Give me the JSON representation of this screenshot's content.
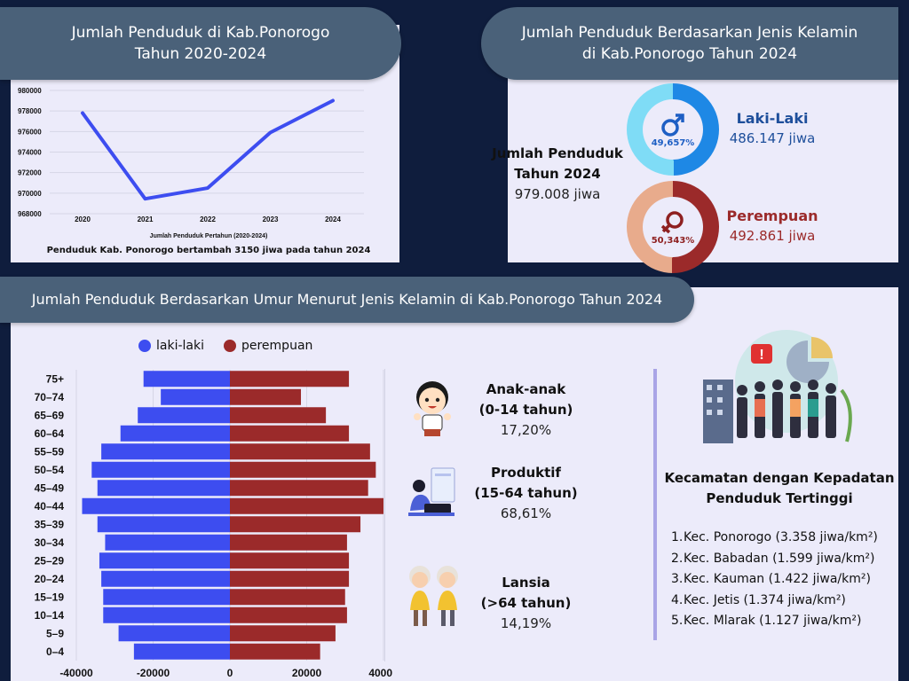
{
  "header_left": {
    "line1": "Jumlah Penduduk di Kab.Ponorogo",
    "line2": "Tahun 2020-2024"
  },
  "header_right": {
    "line1": "Jumlah Penduduk Berdasarkan Jenis Kelamin",
    "line2": "di Kab.Ponorogo Tahun 2024"
  },
  "line_chart_caption": "Penduduk Kab. Ponorogo bertambah 3150 jiwa pada tahun 2024",
  "total": {
    "title1": "Jumlah Penduduk",
    "title2": "Tahun 2024",
    "value": "979.008 jiwa"
  },
  "male": {
    "label": "Laki-Laki",
    "value": "486.147 jiwa",
    "percent_text": "49,657%",
    "fraction": 0.49657,
    "color": "#1e88e5",
    "light": "#7fdcf6"
  },
  "female": {
    "label": "Perempuan",
    "value": "492.861 jiwa",
    "percent_text": "50,343%",
    "fraction": 0.50343,
    "color": "#9b2a2a",
    "light": "#e8ab8c"
  },
  "pyramid_header": "Jumlah Penduduk Berdasarkan Umur Menurut Jenis Kelamin di Kab.Ponorogo Tahun 2024",
  "age_groups": [
    {
      "title": "Anak-anak",
      "range": "(0-14 tahun)",
      "value": "17,20%",
      "icon": "child-icon"
    },
    {
      "title": "Produktif",
      "range": "(15-64 tahun)",
      "value": "68,61%",
      "icon": "worker-icon"
    },
    {
      "title": "Lansia",
      "range": "(>64 tahun)",
      "value": "14,19%",
      "icon": "elderly-icon"
    }
  ],
  "kecamatan": {
    "title1": "Kecamatan dengan Kepadatan",
    "title2": "Penduduk Tertinggi",
    "items": [
      "Kec. Ponorogo (3.358 jiwa/km²)",
      "Kec. Babadan (1.599 jiwa/km²)",
      "Kec. Kauman (1.422 jiwa/km²)",
      "Kec. Jetis (1.374 jiwa/km²)",
      "Kec. Mlarak (1.127 jiwa/km²)"
    ]
  },
  "chart_data": [
    {
      "type": "line",
      "x": [
        "2020",
        "2021",
        "2022",
        "2023",
        "2024"
      ],
      "values": [
        977800,
        969450,
        970500,
        975900,
        979008
      ],
      "xlabel": "Jumlah Penduduk Pertahun (2020-2024)",
      "ylabel": "",
      "ylim": [
        968000,
        980000
      ],
      "yticks": [
        "968000",
        "970000",
        "972000",
        "974000",
        "976000",
        "978000",
        "980000"
      ],
      "grid": true,
      "color": "#3d4df0"
    },
    {
      "type": "bar",
      "orientation": "horizontal-pyramid",
      "categories": [
        "0–4",
        "5–9",
        "10–14",
        "15–19",
        "20–24",
        "25–29",
        "30–34",
        "35–39",
        "40–44",
        "45–49",
        "50–54",
        "55–59",
        "60–64",
        "65–69",
        "70–74",
        "75+"
      ],
      "series": [
        {
          "name": "laki-laki",
          "color": "#3d4df0",
          "values": [
            25000,
            29000,
            33000,
            33000,
            33500,
            34000,
            32500,
            34500,
            38500,
            34500,
            36000,
            33500,
            28500,
            24000,
            18000,
            22500
          ]
        },
        {
          "name": "perempuan",
          "color": "#9b2a2a",
          "values": [
            23500,
            27500,
            30500,
            30000,
            31000,
            31000,
            30500,
            34000,
            40000,
            36000,
            38000,
            36500,
            31000,
            25000,
            18500,
            31000
          ]
        }
      ],
      "xticks": [
        "-40000",
        "-20000",
        "0",
        "20000",
        "40000"
      ],
      "xlim": [
        -40000,
        40000
      ],
      "legend": "top"
    }
  ]
}
